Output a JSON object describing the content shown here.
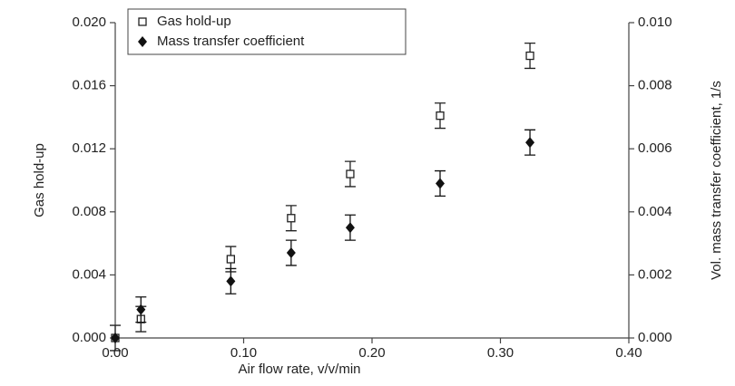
{
  "chart_data": {
    "type": "scatter",
    "x_label": "Air flow rate, v/v/min",
    "y_label": "Gas hold-up",
    "y2_label": "Vol. mass transfer coefficient, 1/s",
    "x": [
      0.0,
      0.02,
      0.09,
      0.137,
      0.183,
      0.253,
      0.323
    ],
    "series": [
      {
        "name": "Gas hold-up",
        "marker": "square",
        "color": "#222222",
        "values": [
          0.0,
          0.0012,
          0.005,
          0.0076,
          0.0104,
          0.0141,
          0.0179
        ],
        "errors": [
          0.0008,
          0.0008,
          0.0008,
          0.0008,
          0.0008,
          0.0008,
          0.0008
        ]
      },
      {
        "name": "Mass transfer coefficient",
        "marker": "diamond",
        "color": "#111111",
        "axis": "y2",
        "values": [
          0.0,
          0.0009,
          0.0018,
          0.0027,
          0.0035,
          0.0049,
          0.0062
        ],
        "errors": [
          0.0,
          0.0004,
          0.0004,
          0.0004,
          0.0004,
          0.0004,
          0.0004
        ]
      }
    ],
    "xlim": [
      0,
      0.4
    ],
    "xticks": [
      {
        "value": 0,
        "label": "0.00"
      },
      {
        "value": 0.1,
        "label": "0.10"
      },
      {
        "value": 0.2,
        "label": "0.20"
      },
      {
        "value": 0.3,
        "label": "0.30"
      },
      {
        "value": 0.4,
        "label": "0.40"
      }
    ],
    "ylim": [
      0,
      0.02
    ],
    "yticks": [
      {
        "value": 0,
        "label": "0.000"
      },
      {
        "value": 0.004,
        "label": "0.004"
      },
      {
        "value": 0.008,
        "label": "0.008"
      },
      {
        "value": 0.012,
        "label": "0.012"
      },
      {
        "value": 0.016,
        "label": "0.016"
      },
      {
        "value": 0.02,
        "label": "0.020"
      }
    ],
    "y2lim": [
      0,
      0.01
    ],
    "y2ticks": [
      {
        "value": 0,
        "label": "0.000"
      },
      {
        "value": 0.002,
        "label": "0.002"
      },
      {
        "value": 0.004,
        "label": "0.004"
      },
      {
        "value": 0.006,
        "label": "0.006"
      },
      {
        "value": 0.008,
        "label": "0.008"
      },
      {
        "value": 0.01,
        "label": "0.010"
      }
    ],
    "legend": "upper left"
  }
}
